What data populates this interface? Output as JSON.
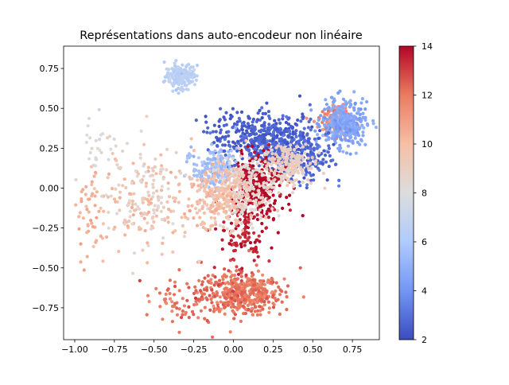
{
  "chart_data": {
    "type": "scatter",
    "title": "Représentations dans auto-encodeur non linéaire",
    "xlabel": "",
    "ylabel": "",
    "xlim": [
      -1.07,
      0.92
    ],
    "ylim": [
      -0.95,
      0.89
    ],
    "xticks": [
      -1.0,
      -0.75,
      -0.5,
      -0.25,
      0.0,
      0.25,
      0.5,
      0.75
    ],
    "xtick_labels": [
      "−1.00",
      "−0.75",
      "−0.50",
      "−0.25",
      "0.00",
      "0.25",
      "0.50",
      "0.75"
    ],
    "yticks": [
      -0.75,
      -0.5,
      -0.25,
      0.0,
      0.25,
      0.5,
      0.75
    ],
    "ytick_labels": [
      "−0.75",
      "−0.50",
      "−0.25",
      "0.00",
      "0.25",
      "0.50",
      "0.75"
    ],
    "grid": false,
    "colormap": "coolwarm",
    "colorbar": {
      "vmin": 2,
      "vmax": 14,
      "ticks": [
        2,
        4,
        6,
        8,
        10,
        12,
        14
      ],
      "tick_labels": [
        "2",
        "4",
        "6",
        "8",
        "10",
        "12",
        "14"
      ],
      "stops": [
        "#3b4cc0",
        "#7396f5",
        "#b0cbfc",
        "#dcdddd",
        "#f6bfa6",
        "#ea7b60",
        "#b40426"
      ]
    },
    "clusters": [
      {
        "value": 6.5,
        "cx": -0.33,
        "cy": 0.7,
        "sx": 0.05,
        "sy": 0.04,
        "n": 170
      },
      {
        "value": 12.0,
        "cx": 0.05,
        "cy": -0.66,
        "sx": 0.12,
        "sy": 0.06,
        "n": 420
      },
      {
        "value": 12.5,
        "cx": -0.05,
        "cy": -0.62,
        "sx": 0.18,
        "sy": 0.1,
        "n": 80
      },
      {
        "value": 11.5,
        "cx": 0.65,
        "cy": 0.43,
        "sx": 0.05,
        "sy": 0.05,
        "n": 150
      },
      {
        "value": 4.5,
        "cx": 0.7,
        "cy": 0.4,
        "sx": 0.07,
        "sy": 0.07,
        "n": 320
      },
      {
        "value": 2.5,
        "cx": 0.25,
        "cy": 0.28,
        "sx": 0.14,
        "sy": 0.09,
        "n": 380
      },
      {
        "value": 2.8,
        "cx": 0.45,
        "cy": 0.2,
        "sx": 0.09,
        "sy": 0.09,
        "n": 160
      },
      {
        "value": 2.5,
        "cx": 0.05,
        "cy": 0.35,
        "sx": 0.12,
        "sy": 0.06,
        "n": 120
      },
      {
        "value": 14.0,
        "cx": 0.15,
        "cy": 0.0,
        "sx": 0.09,
        "sy": 0.1,
        "n": 300
      },
      {
        "value": 13.5,
        "cx": 0.05,
        "cy": -0.3,
        "sx": 0.07,
        "sy": 0.1,
        "n": 90
      },
      {
        "value": 5.5,
        "cx": -0.12,
        "cy": 0.12,
        "sx": 0.07,
        "sy": 0.06,
        "n": 200
      },
      {
        "value": 8.5,
        "cx": 0.05,
        "cy": 0.0,
        "sx": 0.1,
        "sy": 0.1,
        "n": 250
      },
      {
        "value": 10.0,
        "cx": -0.1,
        "cy": -0.05,
        "sx": 0.1,
        "sy": 0.1,
        "n": 220
      },
      {
        "value": 9.0,
        "cx": 0.35,
        "cy": 0.15,
        "sx": 0.08,
        "sy": 0.07,
        "n": 180
      },
      {
        "value": 10.0,
        "cx": -0.55,
        "cy": -0.1,
        "sx": 0.18,
        "sy": 0.15,
        "n": 140
      },
      {
        "value": 8.5,
        "cx": -0.6,
        "cy": 0.0,
        "sx": 0.17,
        "sy": 0.18,
        "n": 90
      },
      {
        "value": 10.5,
        "cx": -0.92,
        "cy": -0.2,
        "sx": 0.04,
        "sy": 0.14,
        "n": 40
      },
      {
        "value": 8.0,
        "cx": -0.85,
        "cy": 0.3,
        "sx": 0.05,
        "sy": 0.08,
        "n": 22
      },
      {
        "value": 12.0,
        "cx": -0.35,
        "cy": -0.72,
        "sx": 0.1,
        "sy": 0.06,
        "n": 45
      }
    ]
  }
}
